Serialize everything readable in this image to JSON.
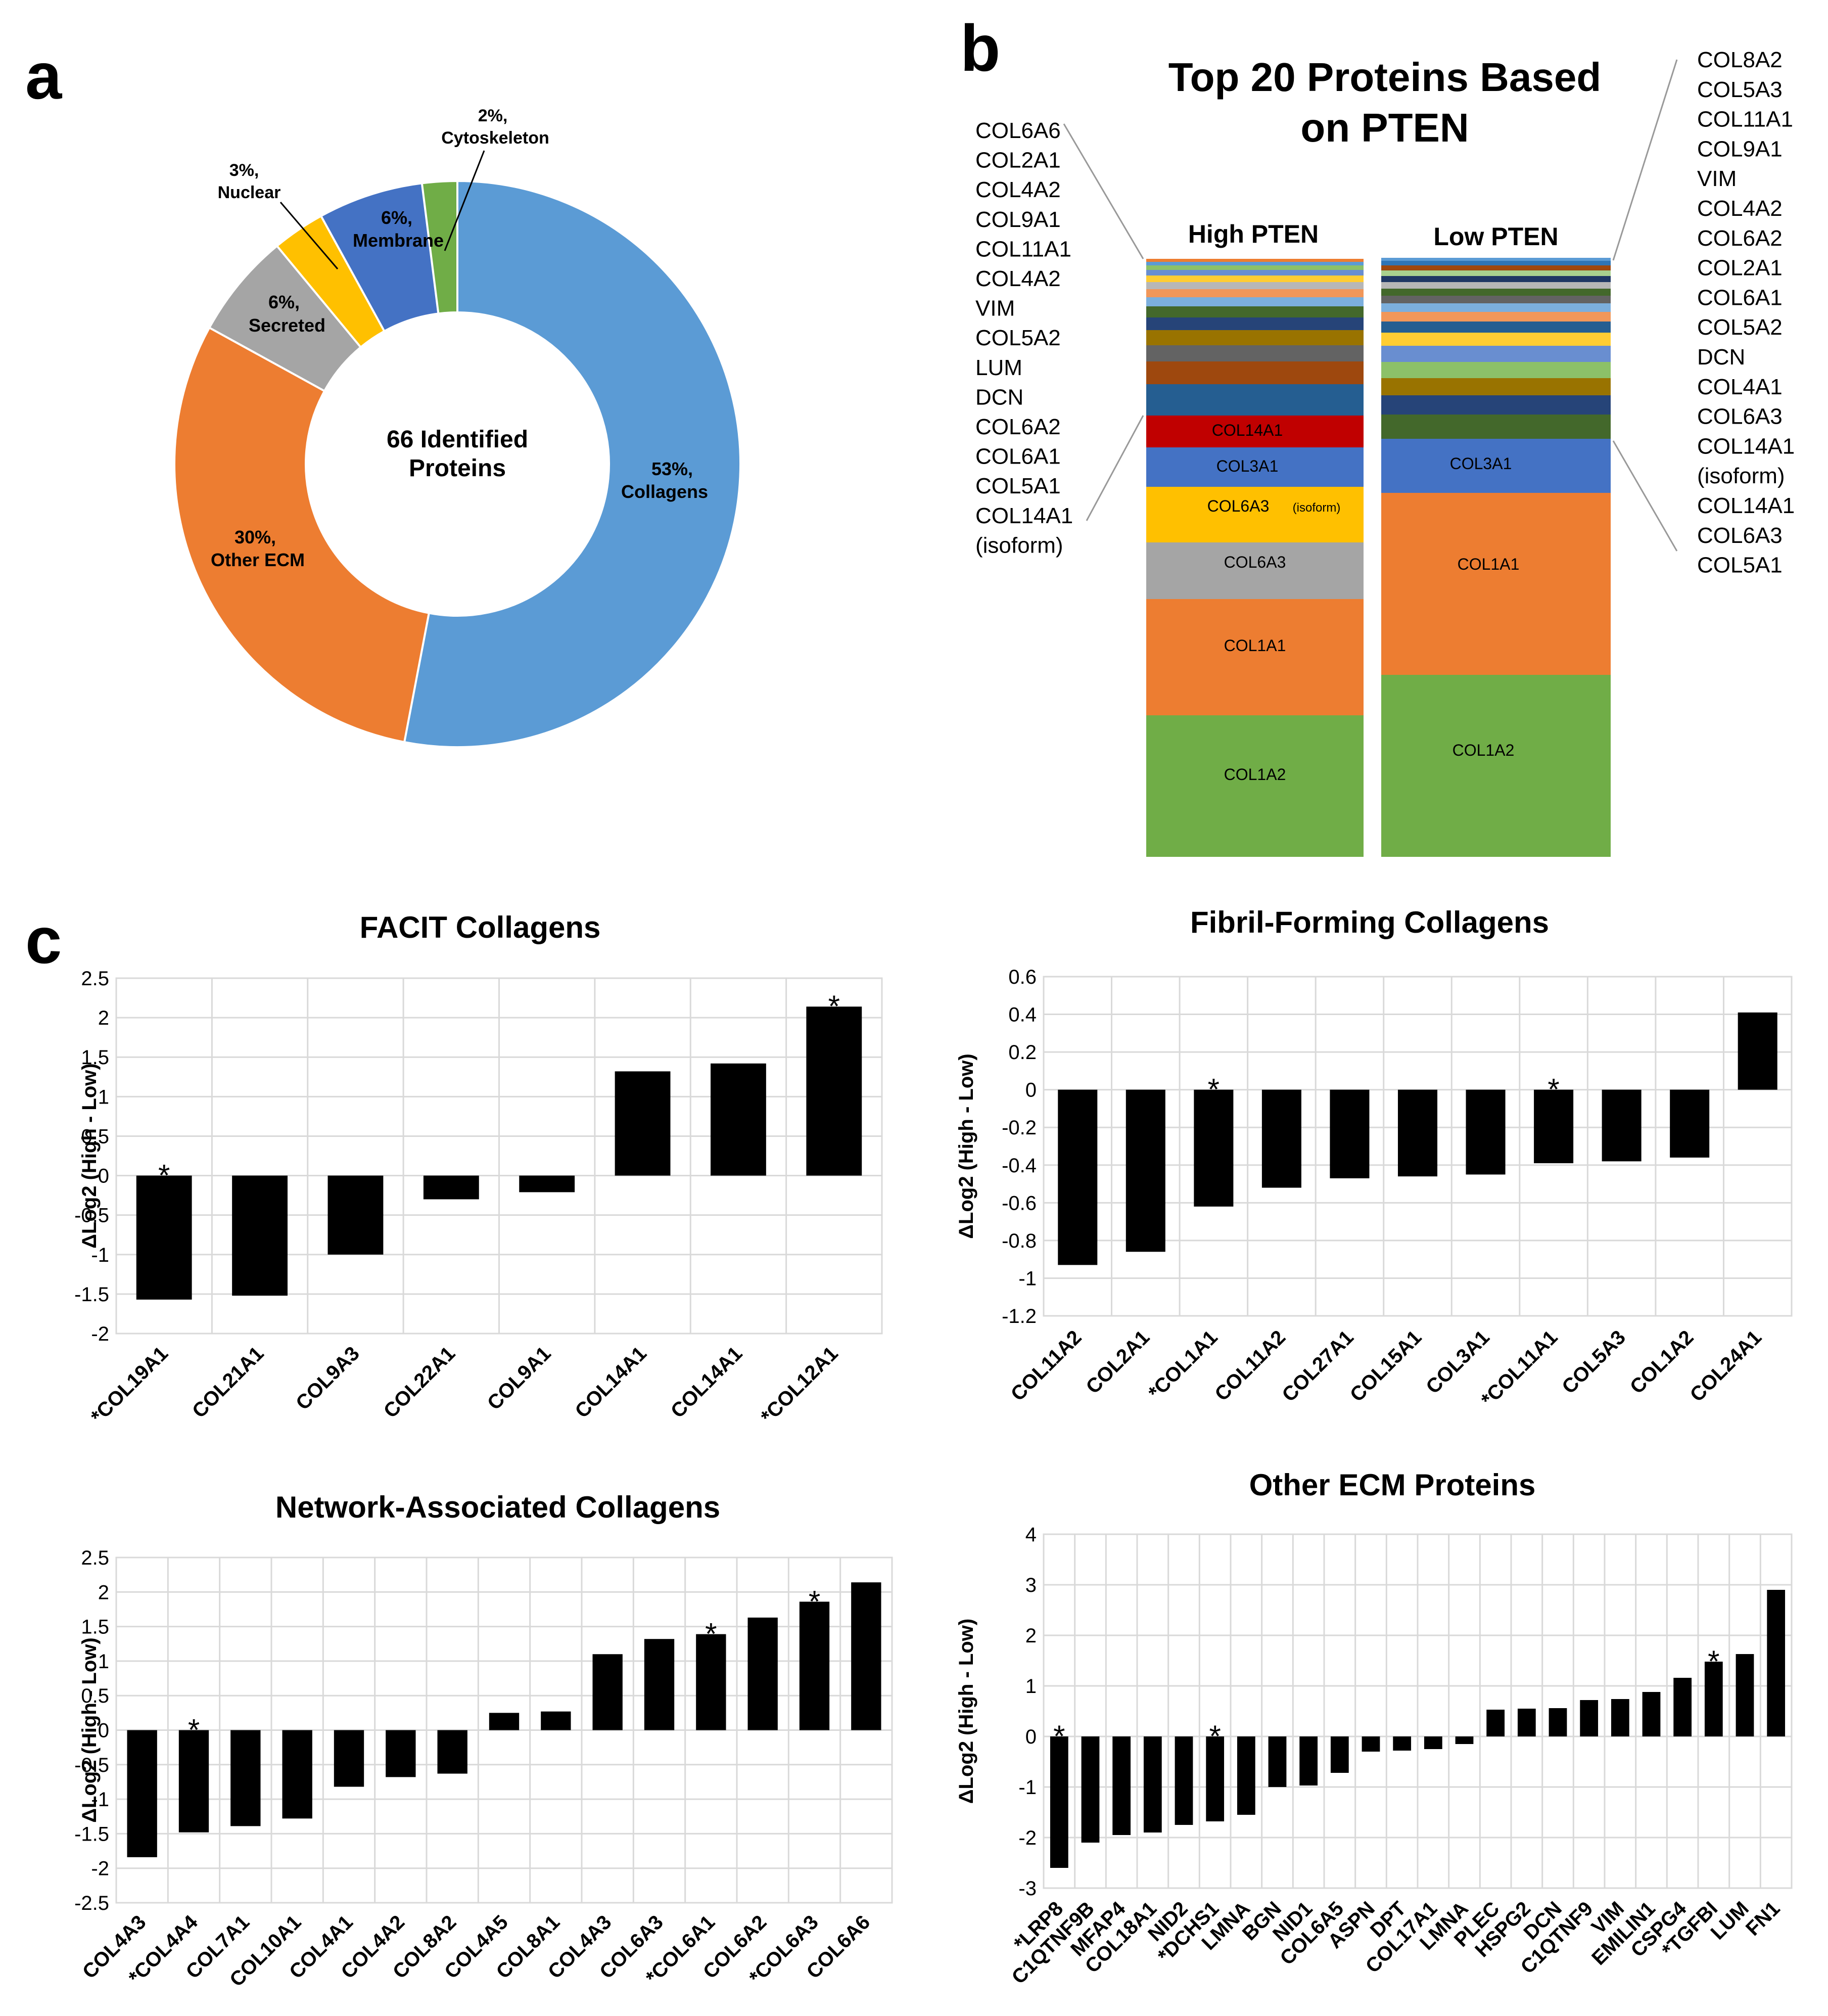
{
  "panel_labels": [
    "a",
    "b",
    "c"
  ],
  "colors": {
    "collagens": "#5b9bd5",
    "other_ecm": "#ed7d31",
    "secreted": "#a5a5a5",
    "nuclear": "#ffc000",
    "membrane": "#4472c4",
    "cytoskeleton": "#70ad47",
    "bar": "#000000",
    "grid": "#d9d9d9"
  },
  "donut": {
    "center_line1": "66 Identified",
    "center_line2": "Proteins",
    "labels": [
      {
        "pct": "53%,",
        "name": "Collagens"
      },
      {
        "pct": "30%,",
        "name": "Other ECM"
      },
      {
        "pct": "6%,",
        "name": "Secreted"
      },
      {
        "pct": "3%,",
        "name": "Nuclear"
      },
      {
        "pct": "6%,",
        "name": "Membrane"
      },
      {
        "pct": "2%,",
        "name": "Cytoskeleton"
      }
    ]
  },
  "stack": {
    "title_line1": "Top 20 Proteins Based",
    "title_line2": "on PTEN",
    "high_label": "High PTEN",
    "low_label": "Low PTEN",
    "high_segments": [
      "COL1A2",
      "COL1A1",
      "COL6A3",
      "COL6A3",
      "(isoform)",
      "COL3A1",
      "COL14A1"
    ],
    "low_segments": [
      "COL1A2",
      "COL1A1",
      "COL3A1"
    ],
    "left_list": [
      "COL6A6",
      "COL2A1",
      "COL4A2",
      "COL9A1",
      "COL11A1",
      "COL4A2",
      "VIM",
      "COL5A2",
      "LUM",
      "DCN",
      "COL6A2",
      "COL6A1",
      "COL5A1",
      "COL14A1",
      "(isoform)"
    ],
    "right_list": [
      "COL8A2",
      "COL5A3",
      "COL11A1",
      "COL9A1",
      "VIM",
      "COL4A2",
      "COL6A2",
      "COL2A1",
      "COL6A1",
      "COL5A2",
      "DCN",
      "COL4A1",
      "COL6A3",
      "COL14A1",
      "(isoform)",
      "COL14A1",
      "COL6A3",
      "COL5A1"
    ]
  },
  "chart_data": [
    {
      "type": "bar",
      "title": "FACIT Collagens",
      "ylabel": "ΔLog2 (High - Low)",
      "ylim": [
        -2,
        2.5
      ],
      "ticks": [
        "2.5",
        "2",
        "1.5",
        "1",
        "0.5",
        "0",
        "-0.5",
        "-1",
        "-1.5",
        "-2"
      ],
      "categories": [
        "*COL19A1",
        "COL21A1",
        "COL9A3",
        "COL22A1",
        "COL9A1",
        "COL14A1",
        "COL14A1",
        "*COL12A1"
      ],
      "values": [
        -1.57,
        -1.52,
        -1.0,
        -0.3,
        -0.21,
        1.32,
        1.42,
        2.14
      ],
      "significant": [
        true,
        false,
        false,
        false,
        false,
        false,
        false,
        true
      ],
      "grid": true
    },
    {
      "type": "bar",
      "title": "Fibril-Forming Collagens",
      "ylabel": "ΔLog2 (High - Low)",
      "ylim": [
        -1.2,
        0.6
      ],
      "ticks": [
        "0.6",
        "0.4",
        "0.2",
        "0",
        "-0.2",
        "-0.4",
        "-0.6",
        "-0.8",
        "-1",
        "-1.2"
      ],
      "categories": [
        "COL11A2",
        "COL2A1",
        "*COL1A1",
        "COL11A2",
        "COL27A1",
        "COL15A1",
        "COL3A1",
        "*COL11A1",
        "COL5A3",
        "COL1A2",
        "COL24A1"
      ],
      "values": [
        -0.93,
        -0.86,
        -0.62,
        -0.52,
        -0.47,
        -0.46,
        -0.45,
        -0.39,
        -0.38,
        -0.36,
        0.41
      ],
      "significant": [
        false,
        false,
        true,
        false,
        false,
        false,
        false,
        true,
        false,
        false,
        false
      ],
      "grid": true
    },
    {
      "type": "bar",
      "title": "Network-Associated Collagens",
      "ylabel": "ΔLog2 (High - Low)",
      "ylim": [
        -2.5,
        2.5
      ],
      "ticks": [
        "2.5",
        "2",
        "1.5",
        "1",
        "0.5",
        "0",
        "-0.5",
        "-1",
        "-1.5",
        "-2",
        "-2.5"
      ],
      "categories": [
        "COL4A3",
        "*COL4A4",
        "COL7A1",
        "COL10A1",
        "COL4A1",
        "COL4A2",
        "COL8A2",
        "COL4A5",
        "COL8A1",
        "COL4A3",
        "COL6A3",
        "*COL6A1",
        "COL6A2",
        "*COL6A3",
        "COL6A6"
      ],
      "values": [
        -1.84,
        -1.48,
        -1.39,
        -1.28,
        -0.82,
        -0.68,
        -0.63,
        0.25,
        0.27,
        1.1,
        1.32,
        1.39,
        1.63,
        1.86,
        2.14
      ],
      "significant": [
        false,
        true,
        false,
        false,
        false,
        false,
        false,
        false,
        false,
        false,
        false,
        true,
        false,
        true,
        false
      ],
      "grid": true
    },
    {
      "type": "bar",
      "title": "Other ECM Proteins",
      "ylabel": "ΔLog2 (High - Low)",
      "ylim": [
        -3,
        4
      ],
      "ticks": [
        "4",
        "3",
        "2",
        "1",
        "0",
        "-1",
        "-2",
        "-3"
      ],
      "categories": [
        "*LRP8",
        "C1QTNF9B",
        "MFAP4",
        "COL18A1",
        "NID2",
        "*DCHS1",
        "LMNA",
        "BGN",
        "NID1",
        "COL6A5",
        "ASPN",
        "DPT",
        "COL17A1",
        "LMNA",
        "PLEC",
        "HSPG2",
        "DCN",
        "C1QTNF9",
        "VIM",
        "EMILIN1",
        "CSPG4",
        "*TGFBI",
        "LUM",
        "FN1"
      ],
      "values": [
        -2.6,
        -2.1,
        -1.95,
        -1.9,
        -1.75,
        -1.68,
        -1.55,
        -1.0,
        -0.97,
        -0.72,
        -0.3,
        -0.28,
        -0.25,
        -0.15,
        0.53,
        0.55,
        0.56,
        0.72,
        0.74,
        0.88,
        1.16,
        1.48,
        1.63,
        2.9
      ],
      "significant": [
        true,
        false,
        false,
        false,
        false,
        true,
        false,
        false,
        false,
        false,
        false,
        false,
        false,
        false,
        false,
        false,
        false,
        false,
        false,
        false,
        false,
        true,
        false,
        false
      ],
      "grid": true
    }
  ]
}
